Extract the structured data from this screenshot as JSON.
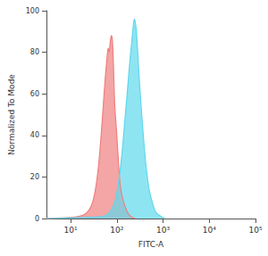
{
  "chart_data": {
    "type": "area",
    "x_label": "FITC-A",
    "y_label": "Normalized To Mode",
    "log": "x",
    "grid": false,
    "xlim": [
      3,
      100000
    ],
    "ylim": [
      0,
      100
    ],
    "xticks": [
      {
        "value": 10,
        "label": "10¹"
      },
      {
        "value": 100,
        "label": "10²"
      },
      {
        "value": 1000,
        "label": "10³"
      },
      {
        "value": 10000,
        "label": "10⁴"
      },
      {
        "value": 100000,
        "label": "10⁵"
      }
    ],
    "yticks": [
      0,
      20,
      40,
      60,
      80,
      100
    ],
    "series": [
      {
        "color": "#f07f7f",
        "x": [
          3,
          10,
          15,
          20,
          25,
          30,
          35,
          40,
          45,
          50,
          55,
          60,
          65,
          68,
          72,
          76,
          80,
          85,
          90,
          100,
          110,
          120,
          140,
          170,
          200,
          250
        ],
        "values": [
          0,
          0.5,
          1,
          2,
          4,
          8,
          15,
          25,
          38,
          52,
          65,
          75,
          82,
          80,
          85,
          88,
          86,
          72,
          55,
          40,
          25,
          15,
          8,
          3,
          1,
          0
        ]
      },
      {
        "color": "#5fd8ec",
        "x": [
          3,
          20,
          50,
          70,
          90,
          110,
          130,
          150,
          170,
          190,
          210,
          230,
          240,
          260,
          280,
          300,
          340,
          380,
          430,
          500,
          600,
          700,
          900,
          1100
        ],
        "values": [
          0,
          0.5,
          1,
          3,
          8,
          18,
          32,
          48,
          62,
          75,
          85,
          94,
          96,
          92,
          82,
          70,
          52,
          38,
          25,
          14,
          7,
          3,
          1,
          0
        ]
      }
    ]
  }
}
